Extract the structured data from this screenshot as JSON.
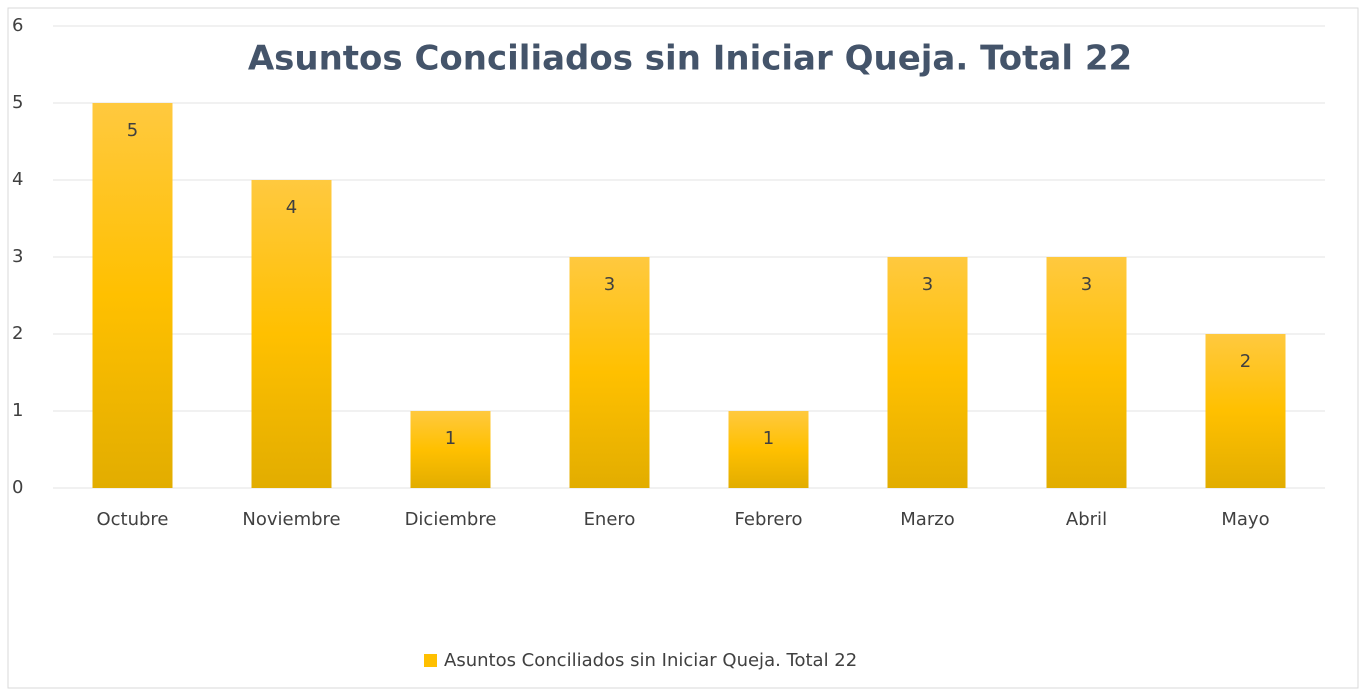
{
  "chart_data": {
    "type": "bar",
    "title": "Asuntos Conciliados sin Iniciar Queja. Total 22",
    "categories": [
      "Octubre",
      "Noviembre",
      "Diciembre",
      "Enero",
      "Febrero",
      "Marzo",
      "Abril",
      "Mayo"
    ],
    "series": [
      {
        "name": "Asuntos Conciliados sin Iniciar Queja. Total 22",
        "color": "#ffc000",
        "values": [
          5,
          4,
          1,
          3,
          1,
          3,
          3,
          2
        ]
      }
    ],
    "ylim": [
      0,
      6
    ],
    "yticks": [
      0,
      1,
      2,
      3,
      4,
      5,
      6
    ],
    "grid": true,
    "legend": "bottom",
    "data_labels": true
  }
}
